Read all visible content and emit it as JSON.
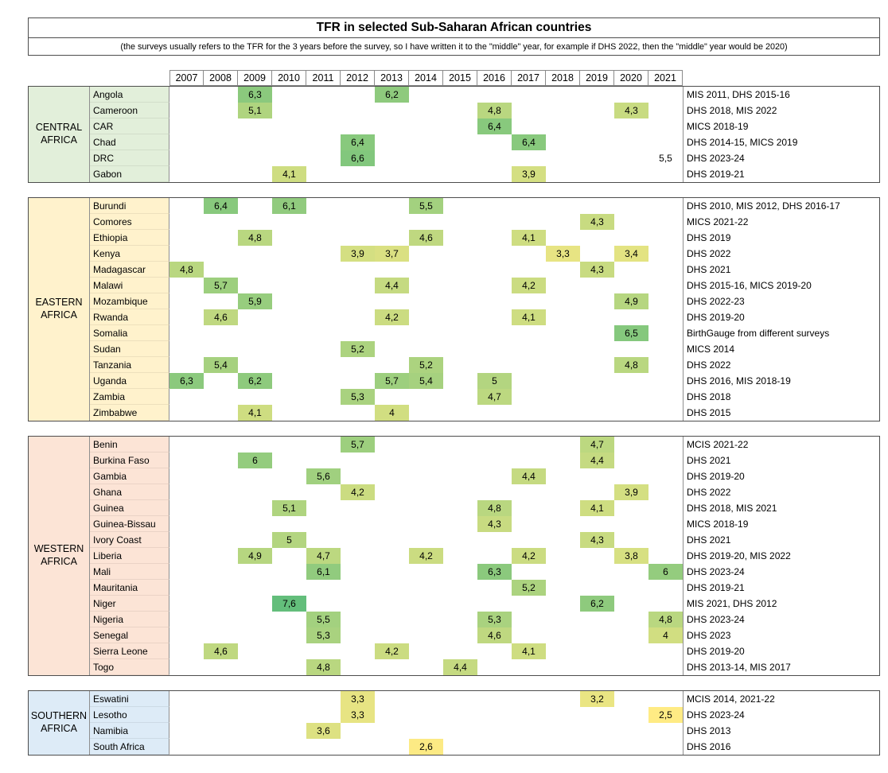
{
  "chart_data": {
    "type": "heatmap",
    "title": "TFR in selected Sub-Saharan African countries",
    "subtitle": "(the surveys usually refers to the TFR for the 3 years before the survey, so I have written it to the \"middle\" year, for example if DHS 2022, then the \"middle\" year would be 2020)",
    "years": [
      "2007",
      "2008",
      "2009",
      "2010",
      "2011",
      "2012",
      "2013",
      "2014",
      "2015",
      "2016",
      "2017",
      "2018",
      "2019",
      "2020",
      "2021"
    ],
    "value_range": [
      2.5,
      7.6
    ],
    "color_scale": {
      "min_value": 2.5,
      "max_value": 7.6,
      "min_color": "#FFEB84",
      "max_color": "#63BE7B"
    },
    "regions": [
      {
        "name": "CENTRAL AFRICA",
        "color": "#E2EFDA",
        "rows": [
          {
            "country": "Angola",
            "source": "MIS 2011, DHS 2015-16",
            "cells": [
              {
                "year": "2009",
                "value": "6,3"
              },
              {
                "year": "2013",
                "value": "6,2"
              }
            ]
          },
          {
            "country": "Cameroon",
            "source": "DHS 2018, MIS 2022",
            "cells": [
              {
                "year": "2009",
                "value": "5,1"
              },
              {
                "year": "2016",
                "value": "4,8"
              },
              {
                "year": "2020",
                "value": "4,3"
              }
            ]
          },
          {
            "country": "CAR",
            "source": "MICS 2018-19",
            "cells": [
              {
                "year": "2016",
                "value": "6,4"
              }
            ]
          },
          {
            "country": "Chad",
            "source": "DHS 2014-15, MICS 2019",
            "cells": [
              {
                "year": "2012",
                "value": "6,4"
              },
              {
                "year": "2017",
                "value": "6,4"
              }
            ]
          },
          {
            "country": "DRC",
            "source": "DHS 2023-24",
            "cells": [
              {
                "year": "2012",
                "value": "6,6"
              },
              {
                "year": "2021",
                "value": "5,5",
                "nofill": true
              }
            ]
          },
          {
            "country": "Gabon",
            "source": "DHS 2019-21",
            "cells": [
              {
                "year": "2010",
                "value": "4,1"
              },
              {
                "year": "2017",
                "value": "3,9"
              }
            ]
          }
        ]
      },
      {
        "name": "EASTERN AFRICA",
        "color": "#FFF2CC",
        "rows": [
          {
            "country": "Burundi",
            "source": "DHS 2010, MIS 2012, DHS 2016-17",
            "cells": [
              {
                "year": "2008",
                "value": "6,4"
              },
              {
                "year": "2010",
                "value": "6,1"
              },
              {
                "year": "2014",
                "value": "5,5"
              }
            ]
          },
          {
            "country": "Comores",
            "source": "MICS 2021-22",
            "cells": [
              {
                "year": "2019",
                "value": "4,3"
              }
            ]
          },
          {
            "country": "Ethiopia",
            "source": "DHS 2019",
            "cells": [
              {
                "year": "2009",
                "value": "4,8"
              },
              {
                "year": "2014",
                "value": "4,6"
              },
              {
                "year": "2017",
                "value": "4,1"
              }
            ]
          },
          {
            "country": "Kenya",
            "source": "DHS 2022",
            "cells": [
              {
                "year": "2012",
                "value": "3,9"
              },
              {
                "year": "2013",
                "value": "3,7"
              },
              {
                "year": "2018",
                "value": "3,3"
              },
              {
                "year": "2020",
                "value": "3,4"
              }
            ]
          },
          {
            "country": "Madagascar",
            "source": "DHS 2021",
            "cells": [
              {
                "year": "2007",
                "value": "4,8"
              },
              {
                "year": "2019",
                "value": "4,3"
              }
            ]
          },
          {
            "country": "Malawi",
            "source": "DHS 2015-16, MICS 2019-20",
            "cells": [
              {
                "year": "2008",
                "value": "5,7"
              },
              {
                "year": "2013",
                "value": "4,4"
              },
              {
                "year": "2017",
                "value": "4,2"
              }
            ]
          },
          {
            "country": "Mozambique",
            "source": "DHS 2022-23",
            "cells": [
              {
                "year": "2009",
                "value": "5,9"
              },
              {
                "year": "2020",
                "value": "4,9"
              }
            ]
          },
          {
            "country": "Rwanda",
            "source": "DHS 2019-20",
            "cells": [
              {
                "year": "2008",
                "value": "4,6"
              },
              {
                "year": "2013",
                "value": "4,2"
              },
              {
                "year": "2017",
                "value": "4,1"
              }
            ]
          },
          {
            "country": "Somalia",
            "source": "BirthGauge from different surveys",
            "cells": [
              {
                "year": "2020",
                "value": "6,5"
              }
            ]
          },
          {
            "country": "Sudan",
            "source": "MICS 2014",
            "cells": [
              {
                "year": "2012",
                "value": "5,2"
              }
            ]
          },
          {
            "country": "Tanzania",
            "source": "DHS 2022",
            "cells": [
              {
                "year": "2008",
                "value": "5,4"
              },
              {
                "year": "2014",
                "value": "5,2"
              },
              {
                "year": "2020",
                "value": "4,8"
              }
            ]
          },
          {
            "country": "Uganda",
            "source": "DHS 2016, MIS 2018-19",
            "cells": [
              {
                "year": "2007",
                "value": "6,3"
              },
              {
                "year": "2009",
                "value": "6,2"
              },
              {
                "year": "2013",
                "value": "5,7"
              },
              {
                "year": "2014",
                "value": "5,4"
              },
              {
                "year": "2016",
                "value": "5"
              }
            ]
          },
          {
            "country": "Zambia",
            "source": "DHS 2018",
            "cells": [
              {
                "year": "2012",
                "value": "5,3"
              },
              {
                "year": "2016",
                "value": "4,7"
              }
            ]
          },
          {
            "country": "Zimbabwe",
            "source": "DHS 2015",
            "cells": [
              {
                "year": "2009",
                "value": "4,1"
              },
              {
                "year": "2013",
                "value": "4"
              }
            ]
          }
        ]
      },
      {
        "name": "WESTERN AFRICA",
        "color": "#FCE4D6",
        "rows": [
          {
            "country": "Benin",
            "source": "MCIS 2021-22",
            "cells": [
              {
                "year": "2012",
                "value": "5,7"
              },
              {
                "year": "2019",
                "value": "4,7"
              }
            ]
          },
          {
            "country": "Burkina Faso",
            "source": "DHS 2021",
            "cells": [
              {
                "year": "2009",
                "value": "6"
              },
              {
                "year": "2019",
                "value": "4,4"
              }
            ]
          },
          {
            "country": "Gambia",
            "source": "DHS 2019-20",
            "cells": [
              {
                "year": "2011",
                "value": "5,6"
              },
              {
                "year": "2017",
                "value": "4,4"
              }
            ]
          },
          {
            "country": "Ghana",
            "source": "DHS 2022",
            "cells": [
              {
                "year": "2012",
                "value": "4,2"
              },
              {
                "year": "2020",
                "value": "3,9"
              }
            ]
          },
          {
            "country": "Guinea",
            "source": "DHS 2018, MIS 2021",
            "cells": [
              {
                "year": "2010",
                "value": "5,1"
              },
              {
                "year": "2016",
                "value": "4,8"
              },
              {
                "year": "2019",
                "value": "4,1"
              }
            ]
          },
          {
            "country": "Guinea-Bissau",
            "source": "MICS 2018-19",
            "cells": [
              {
                "year": "2016",
                "value": "4,3"
              }
            ]
          },
          {
            "country": "Ivory Coast",
            "source": "DHS 2021",
            "cells": [
              {
                "year": "2010",
                "value": "5"
              },
              {
                "year": "2019",
                "value": "4,3"
              }
            ]
          },
          {
            "country": "Liberia",
            "source": "DHS 2019-20, MIS 2022",
            "cells": [
              {
                "year": "2009",
                "value": "4,9"
              },
              {
                "year": "2011",
                "value": "4,7"
              },
              {
                "year": "2014",
                "value": "4,2"
              },
              {
                "year": "2017",
                "value": "4,2"
              },
              {
                "year": "2020",
                "value": "3,8"
              }
            ]
          },
          {
            "country": "Mali",
            "source": "DHS 2023-24",
            "cells": [
              {
                "year": "2011",
                "value": "6,1"
              },
              {
                "year": "2016",
                "value": "6,3"
              },
              {
                "year": "2021",
                "value": "6"
              }
            ]
          },
          {
            "country": "Mauritania",
            "source": "DHS 2019-21",
            "cells": [
              {
                "year": "2017",
                "value": "5,2"
              }
            ]
          },
          {
            "country": "Niger",
            "source": "MIS 2021, DHS 2012",
            "cells": [
              {
                "year": "2010",
                "value": "7,6"
              },
              {
                "year": "2019",
                "value": "6,2"
              }
            ]
          },
          {
            "country": "Nigeria",
            "source": "DHS 2023-24",
            "cells": [
              {
                "year": "2011",
                "value": "5,5"
              },
              {
                "year": "2016",
                "value": "5,3"
              },
              {
                "year": "2021",
                "value": "4,8"
              }
            ]
          },
          {
            "country": "Senegal",
            "source": "DHS 2023",
            "cells": [
              {
                "year": "2011",
                "value": "5,3"
              },
              {
                "year": "2016",
                "value": "4,6"
              },
              {
                "year": "2021",
                "value": "4"
              }
            ]
          },
          {
            "country": "Sierra Leone",
            "source": "DHS 2019-20",
            "cells": [
              {
                "year": "2008",
                "value": "4,6"
              },
              {
                "year": "2013",
                "value": "4,2"
              },
              {
                "year": "2017",
                "value": "4,1"
              }
            ]
          },
          {
            "country": "Togo",
            "source": "DHS 2013-14, MIS 2017",
            "cells": [
              {
                "year": "2011",
                "value": "4,8"
              },
              {
                "year": "2015",
                "value": "4,4"
              }
            ]
          }
        ]
      },
      {
        "name": "SOUTHERN AFRICA",
        "color": "#DDEBF7",
        "rows": [
          {
            "country": "Eswatini",
            "source": "MCIS 2014, 2021-22",
            "cells": [
              {
                "year": "2012",
                "value": "3,3"
              },
              {
                "year": "2019",
                "value": "3,2"
              }
            ]
          },
          {
            "country": "Lesotho",
            "source": "DHS 2023-24",
            "cells": [
              {
                "year": "2012",
                "value": "3,3"
              },
              {
                "year": "2021",
                "value": "2,5"
              }
            ]
          },
          {
            "country": "Namibia",
            "source": "DHS 2013",
            "cells": [
              {
                "year": "2011",
                "value": "3,6"
              }
            ]
          },
          {
            "country": "South Africa",
            "source": "DHS 2016",
            "cells": [
              {
                "year": "2014",
                "value": "2,6"
              }
            ]
          }
        ]
      }
    ]
  }
}
